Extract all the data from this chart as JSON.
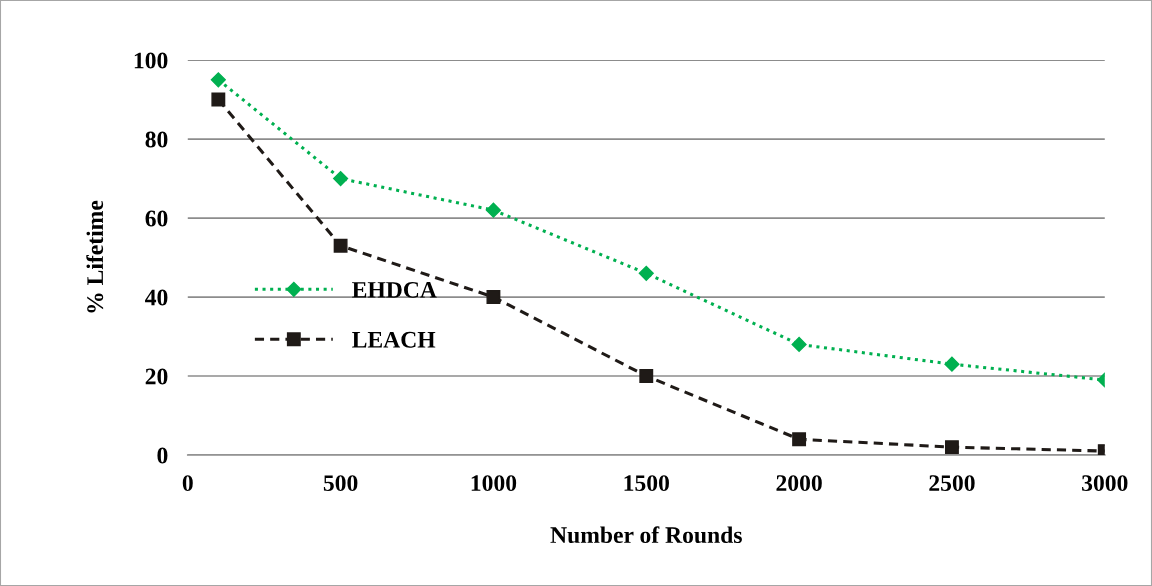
{
  "chart_data": {
    "type": "line",
    "xlabel": "Number of Rounds",
    "ylabel": "% Lifetime",
    "x": [
      100,
      500,
      1000,
      1500,
      2000,
      2500,
      3000
    ],
    "series": [
      {
        "name": "EHDCA",
        "color": "#00b050",
        "marker": "diamond",
        "line_style": "dotted",
        "values": [
          95,
          70,
          62,
          46,
          28,
          23,
          19
        ]
      },
      {
        "name": "LEACH",
        "color": "#1f1a17",
        "marker": "square",
        "line_style": "dashed",
        "values": [
          90,
          53,
          40,
          20,
          4,
          2,
          1
        ]
      }
    ],
    "xlim": [
      0,
      3000
    ],
    "xticks": [
      0,
      500,
      1000,
      1500,
      2000,
      2500,
      3000
    ],
    "ylim": [
      0,
      100
    ],
    "yticks": [
      0,
      20,
      40,
      60,
      80,
      100
    ],
    "grid": "y",
    "legend": "center left"
  }
}
